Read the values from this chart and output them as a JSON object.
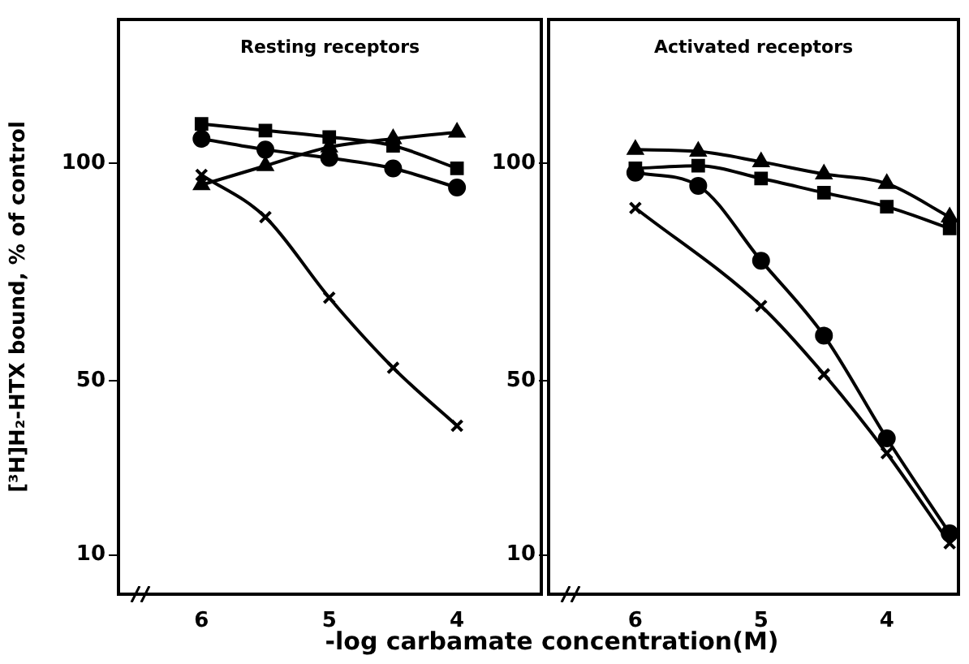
{
  "chart_data": [
    {
      "type": "line",
      "title": "Resting receptors",
      "xlabel": "-log carbamate concentration(M)",
      "ylabel": "[³H]H₂-HTX bound, % of control",
      "xlim": [
        6.65,
        3.34
      ],
      "xticks": [
        6,
        5,
        4
      ],
      "ylim": [
        1,
        133
      ],
      "yticks": [
        10,
        50,
        100
      ],
      "grid": false,
      "legend": false,
      "line_style": "solid",
      "series": [
        {
          "color": "#000000",
          "marker": "square",
          "x": [
            6,
            5.5,
            5,
            4.5,
            4
          ],
          "values": [
            109,
            107.5,
            106,
            104,
            98.8
          ]
        },
        {
          "color": "#000000",
          "marker": "circle",
          "x": [
            6,
            5.5,
            5,
            4.5,
            4
          ],
          "values": [
            105.6,
            103.1,
            101.2,
            98.8,
            94.4
          ]
        },
        {
          "color": "#000000",
          "marker": "triangle",
          "x": [
            6,
            5.5,
            5,
            4.5,
            4
          ],
          "values": [
            95,
            99.4,
            103.7,
            105.6,
            107.1
          ]
        },
        {
          "color": "#000000",
          "marker": "cross",
          "x": [
            6,
            5.5,
            5,
            4.5,
            4
          ],
          "values": [
            97.3,
            87.6,
            69.1,
            53,
            39.7
          ]
        }
      ]
    },
    {
      "type": "line",
      "title": "Activated receptors",
      "xlim": [
        6.69,
        3.43
      ],
      "xticks": [
        6,
        5,
        4
      ],
      "ylim": [
        1,
        133
      ],
      "yticks": [
        10,
        50,
        100
      ],
      "grid": false,
      "legend": false,
      "line_style": "solid",
      "series": [
        {
          "color": "#000000",
          "marker": "triangle",
          "x": [
            6,
            5.5,
            5,
            4.5,
            4,
            3.5
          ],
          "values": [
            103.1,
            102.7,
            100.3,
            97.5,
            95.3,
            87.6
          ]
        },
        {
          "color": "#000000",
          "marker": "square",
          "x": [
            6,
            5.5,
            5,
            4.5,
            4,
            3.5
          ],
          "values": [
            98.8,
            99.4,
            96.5,
            93.2,
            90,
            85
          ]
        },
        {
          "color": "#000000",
          "marker": "circle",
          "x": [
            6,
            5.5,
            5,
            4.5,
            4,
            3.5
          ],
          "values": [
            97.8,
            94.8,
            77.6,
            60.4,
            36.8,
            15
          ]
        },
        {
          "color": "#000000",
          "marker": "cross",
          "x": [
            6,
            5,
            4.5,
            4,
            3.5
          ],
          "values": [
            89.7,
            67.2,
            51.5,
            33.4,
            12.7
          ]
        }
      ]
    }
  ]
}
